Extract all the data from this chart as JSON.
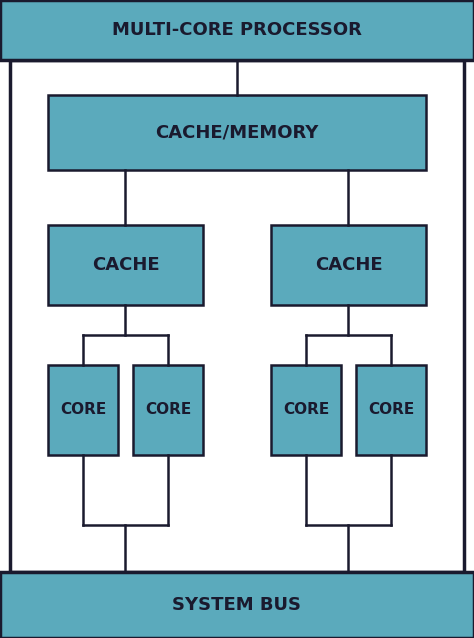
{
  "title": "MULTI-CORE PROCESSOR",
  "system_bus": "SYSTEM BUS",
  "cache_memory_label": "CACHE/MEMORY",
  "cache_label": "CACHE",
  "core_label": "CORE",
  "teal_color": "#5BAABC",
  "dark_text": "#1a1a2e",
  "white_color": "#FFFFFF",
  "black_color": "#1a1a2e",
  "font_size_title": 13,
  "font_size_cache_mem": 13,
  "font_size_cache": 13,
  "font_size_core": 11,
  "linewidth": 1.8,
  "outer_lw": 2.5
}
